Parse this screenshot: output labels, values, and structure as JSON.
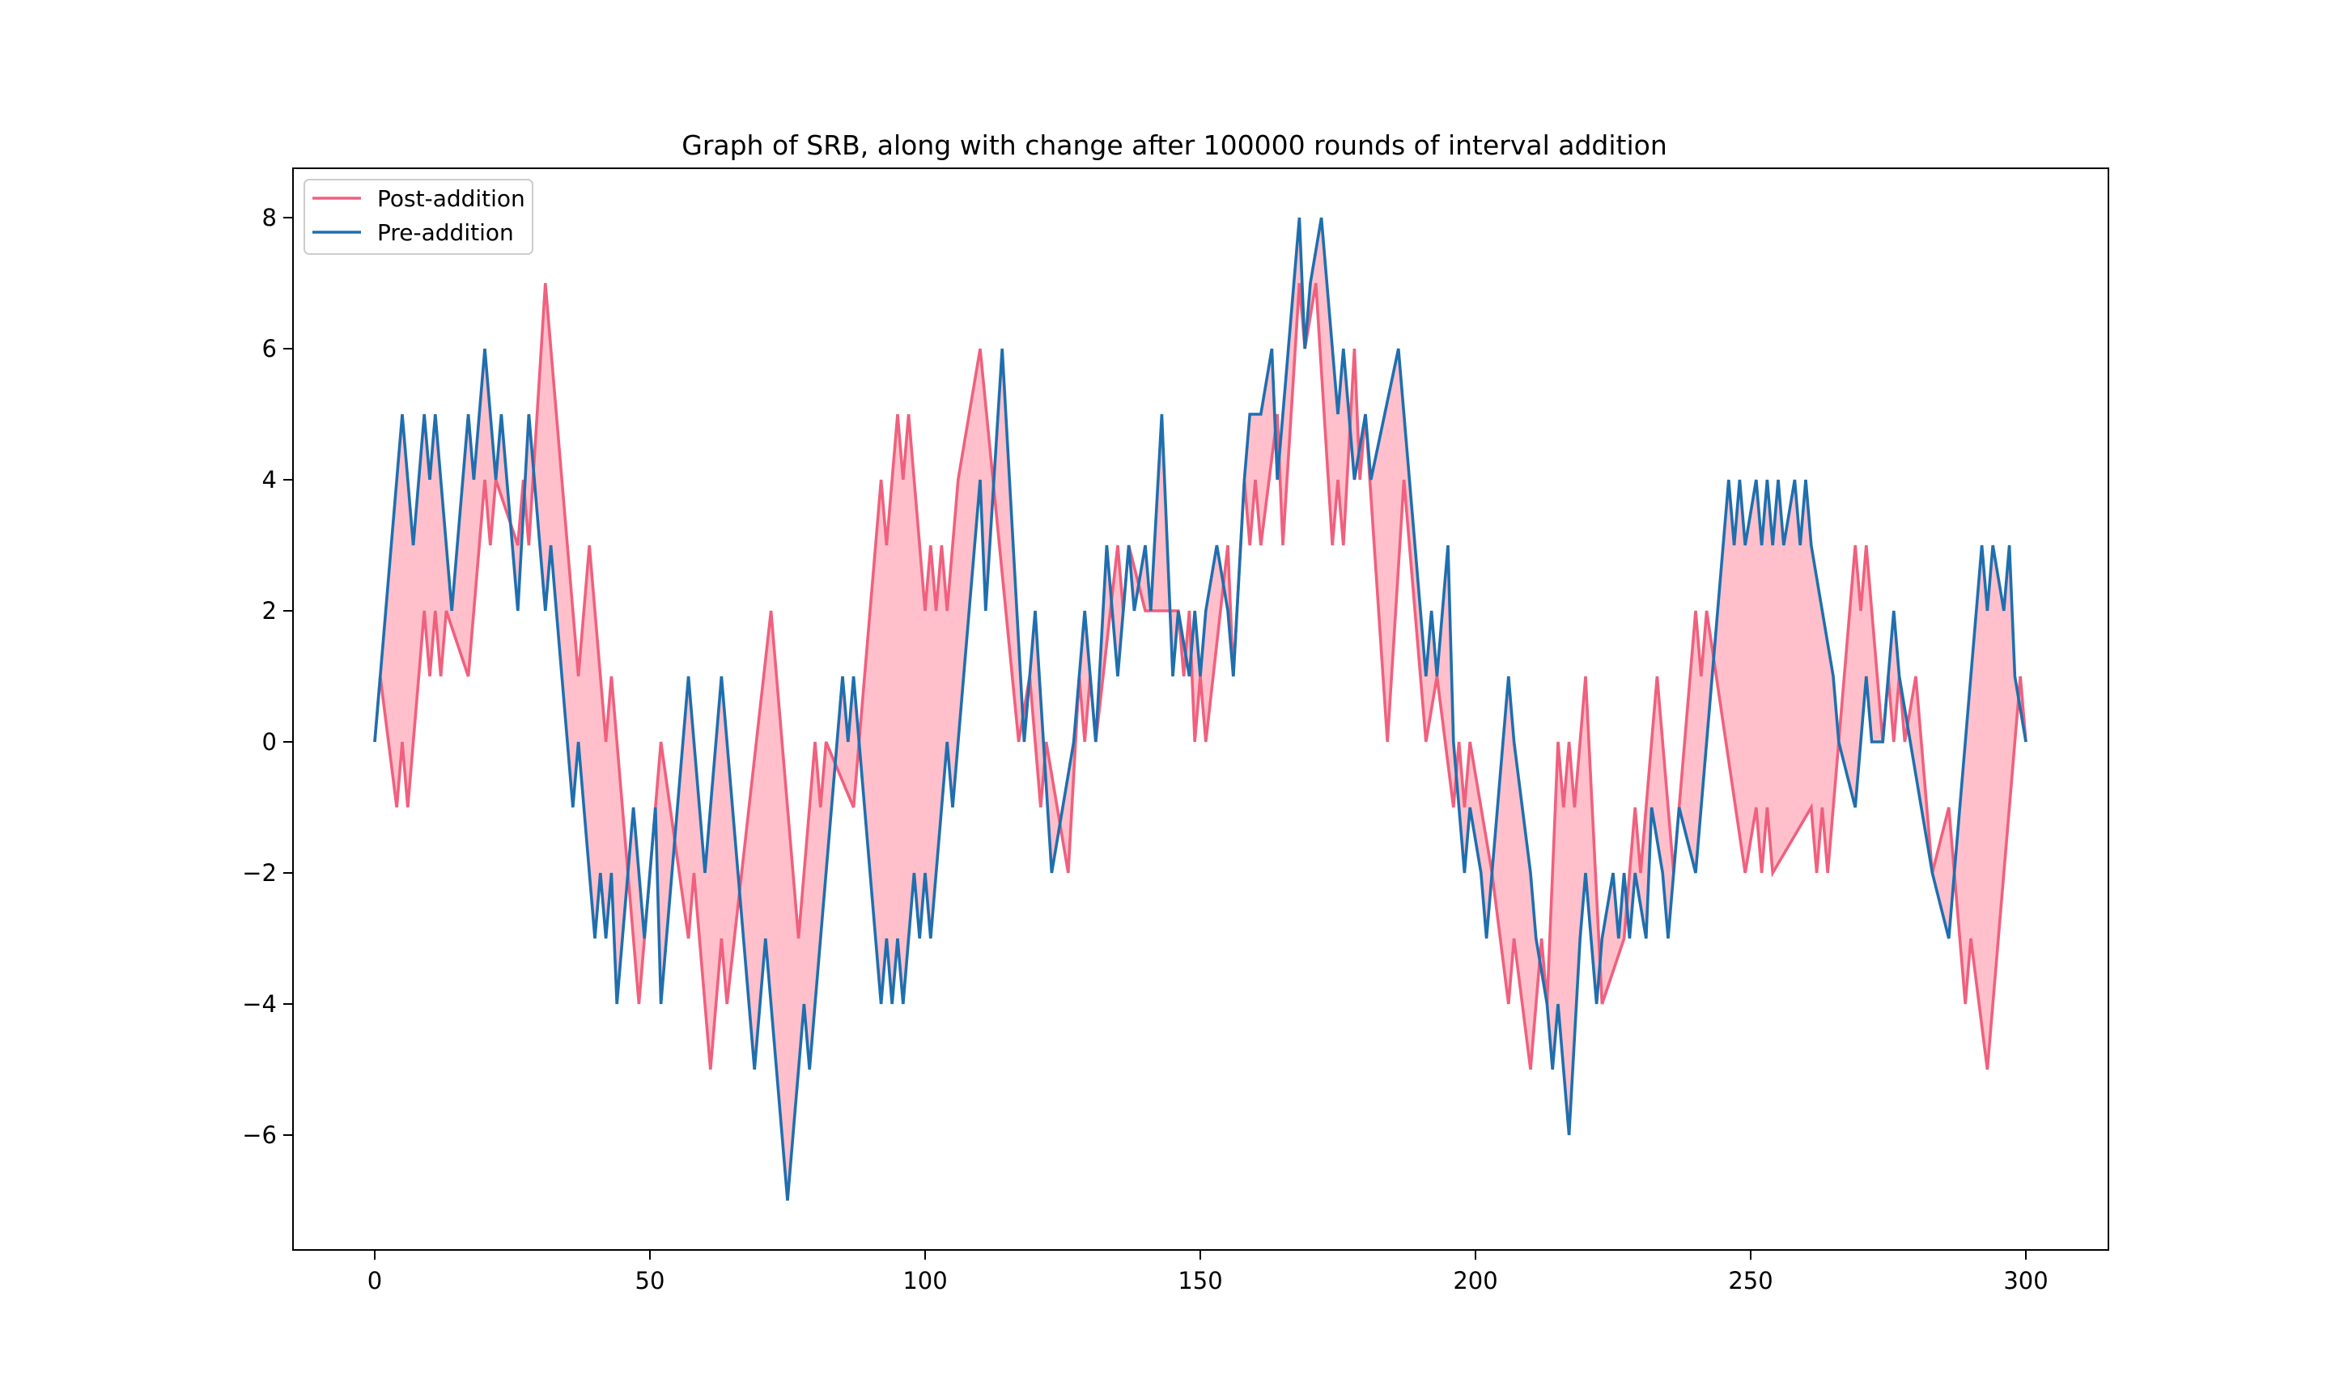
{
  "chart_data": {
    "type": "line",
    "title": "Graph of SRB, along with change after 100000 rounds of interval addition",
    "xlabel": "",
    "ylabel": "",
    "xlim": [
      -15,
      315
    ],
    "ylim": [
      -7.8,
      8.7
    ],
    "xticks": [
      0,
      50,
      100,
      150,
      200,
      250,
      300
    ],
    "yticks": [
      -6,
      -4,
      -2,
      0,
      2,
      4,
      6,
      8
    ],
    "xtick_labels": [
      "0",
      "50",
      "100",
      "150",
      "200",
      "250",
      "300"
    ],
    "ytick_labels": [
      "−6",
      "−4",
      "−2",
      "0",
      "2",
      "4",
      "6",
      "8"
    ],
    "grid": false,
    "legend_position": "upper-left",
    "fill_between": {
      "color": "#ffc0cb",
      "between": [
        "Post-addition",
        "Pre-addition"
      ]
    },
    "series": [
      {
        "name": "Post-addition",
        "color": "#f0607e",
        "points": [
          [
            0,
            0
          ],
          [
            1,
            1
          ],
          [
            4,
            -1
          ],
          [
            5,
            0
          ],
          [
            6,
            -1
          ],
          [
            9,
            2
          ],
          [
            10,
            1
          ],
          [
            11,
            2
          ],
          [
            12,
            1
          ],
          [
            13,
            2
          ],
          [
            17,
            1
          ],
          [
            20,
            4
          ],
          [
            21,
            3
          ],
          [
            22,
            4
          ],
          [
            26,
            3
          ],
          [
            27,
            4
          ],
          [
            28,
            3
          ],
          [
            31,
            7
          ],
          [
            37,
            1
          ],
          [
            39,
            3
          ],
          [
            42,
            0
          ],
          [
            43,
            1
          ],
          [
            48,
            -4
          ],
          [
            52,
            0
          ],
          [
            57,
            -3
          ],
          [
            58,
            -2
          ],
          [
            61,
            -5
          ],
          [
            63,
            -3
          ],
          [
            64,
            -4
          ],
          [
            72,
            2
          ],
          [
            77,
            -3
          ],
          [
            80,
            0
          ],
          [
            81,
            -1
          ],
          [
            82,
            0
          ],
          [
            87,
            -1
          ],
          [
            92,
            4
          ],
          [
            93,
            3
          ],
          [
            95,
            5
          ],
          [
            96,
            4
          ],
          [
            97,
            5
          ],
          [
            100,
            2
          ],
          [
            101,
            3
          ],
          [
            102,
            2
          ],
          [
            103,
            3
          ],
          [
            104,
            2
          ],
          [
            106,
            4
          ],
          [
            110,
            6
          ],
          [
            117,
            0
          ],
          [
            119,
            1
          ],
          [
            121,
            -1
          ],
          [
            122,
            0
          ],
          [
            126,
            -2
          ],
          [
            128,
            1
          ],
          [
            129,
            0
          ],
          [
            130,
            1
          ],
          [
            131,
            0
          ],
          [
            135,
            3
          ],
          [
            136,
            2
          ],
          [
            137,
            3
          ],
          [
            140,
            2
          ],
          [
            146,
            2
          ],
          [
            147,
            1
          ],
          [
            148,
            2
          ],
          [
            149,
            0
          ],
          [
            150,
            1
          ],
          [
            151,
            0
          ],
          [
            155,
            3
          ],
          [
            156,
            1
          ],
          [
            158,
            4
          ],
          [
            159,
            3
          ],
          [
            160,
            4
          ],
          [
            161,
            3
          ],
          [
            164,
            5
          ],
          [
            165,
            3
          ],
          [
            168,
            7
          ],
          [
            169,
            6
          ],
          [
            171,
            7
          ],
          [
            174,
            3
          ],
          [
            175,
            4
          ],
          [
            176,
            3
          ],
          [
            178,
            6
          ],
          [
            179,
            4
          ],
          [
            180,
            5
          ],
          [
            184,
            0
          ],
          [
            187,
            4
          ],
          [
            188,
            3
          ],
          [
            191,
            0
          ],
          [
            193,
            1
          ],
          [
            196,
            -1
          ],
          [
            197,
            0
          ],
          [
            198,
            -1
          ],
          [
            199,
            0
          ],
          [
            203,
            -2
          ],
          [
            206,
            -4
          ],
          [
            207,
            -3
          ],
          [
            210,
            -5
          ],
          [
            212,
            -3
          ],
          [
            213,
            -4
          ],
          [
            215,
            0
          ],
          [
            216,
            -1
          ],
          [
            217,
            0
          ],
          [
            218,
            -1
          ],
          [
            220,
            1
          ],
          [
            223,
            -4
          ],
          [
            227,
            -3
          ],
          [
            229,
            -1
          ],
          [
            230,
            -2
          ],
          [
            233,
            1
          ],
          [
            236,
            -2
          ],
          [
            240,
            2
          ],
          [
            241,
            1
          ],
          [
            242,
            2
          ],
          [
            249,
            -2
          ],
          [
            251,
            -1
          ],
          [
            252,
            -2
          ],
          [
            253,
            -1
          ],
          [
            254,
            -2
          ],
          [
            261,
            -1
          ],
          [
            262,
            -2
          ],
          [
            263,
            -1
          ],
          [
            264,
            -2
          ],
          [
            269,
            3
          ],
          [
            270,
            2
          ],
          [
            271,
            3
          ],
          [
            274,
            0
          ],
          [
            275,
            1
          ],
          [
            276,
            0
          ],
          [
            277,
            1
          ],
          [
            278,
            0
          ],
          [
            280,
            1
          ],
          [
            283,
            -2
          ],
          [
            286,
            -1
          ],
          [
            289,
            -4
          ],
          [
            290,
            -3
          ],
          [
            293,
            -5
          ],
          [
            298,
            0
          ],
          [
            299,
            1
          ],
          [
            300,
            0
          ]
        ]
      },
      {
        "name": "Pre-addition",
        "color": "#1f6fae",
        "points": [
          [
            0,
            0
          ],
          [
            5,
            5
          ],
          [
            7,
            3
          ],
          [
            9,
            5
          ],
          [
            10,
            4
          ],
          [
            11,
            5
          ],
          [
            14,
            2
          ],
          [
            17,
            5
          ],
          [
            18,
            4
          ],
          [
            20,
            6
          ],
          [
            22,
            4
          ],
          [
            23,
            5
          ],
          [
            26,
            2
          ],
          [
            28,
            5
          ],
          [
            31,
            2
          ],
          [
            32,
            3
          ],
          [
            36,
            -1
          ],
          [
            37,
            0
          ],
          [
            40,
            -3
          ],
          [
            41,
            -2
          ],
          [
            42,
            -3
          ],
          [
            43,
            -2
          ],
          [
            44,
            -4
          ],
          [
            47,
            -1
          ],
          [
            49,
            -3
          ],
          [
            51,
            -1
          ],
          [
            52,
            -4
          ],
          [
            57,
            1
          ],
          [
            60,
            -2
          ],
          [
            63,
            1
          ],
          [
            69,
            -5
          ],
          [
            71,
            -3
          ],
          [
            75,
            -7
          ],
          [
            78,
            -4
          ],
          [
            79,
            -5
          ],
          [
            85,
            1
          ],
          [
            86,
            0
          ],
          [
            87,
            1
          ],
          [
            92,
            -4
          ],
          [
            93,
            -3
          ],
          [
            94,
            -4
          ],
          [
            95,
            -3
          ],
          [
            96,
            -4
          ],
          [
            98,
            -2
          ],
          [
            99,
            -3
          ],
          [
            100,
            -2
          ],
          [
            101,
            -3
          ],
          [
            104,
            0
          ],
          [
            105,
            -1
          ],
          [
            110,
            4
          ],
          [
            111,
            2
          ],
          [
            114,
            6
          ],
          [
            118,
            0
          ],
          [
            119,
            1
          ],
          [
            120,
            2
          ],
          [
            123,
            -2
          ],
          [
            127,
            0
          ],
          [
            129,
            2
          ],
          [
            131,
            0
          ],
          [
            133,
            3
          ],
          [
            134,
            2
          ],
          [
            135,
            1
          ],
          [
            137,
            3
          ],
          [
            138,
            2
          ],
          [
            140,
            3
          ],
          [
            141,
            2
          ],
          [
            143,
            5
          ],
          [
            145,
            1
          ],
          [
            146,
            2
          ],
          [
            148,
            1
          ],
          [
            149,
            2
          ],
          [
            150,
            1
          ],
          [
            151,
            2
          ],
          [
            153,
            3
          ],
          [
            155,
            2
          ],
          [
            156,
            1
          ],
          [
            158,
            4
          ],
          [
            159,
            5
          ],
          [
            161,
            5
          ],
          [
            163,
            6
          ],
          [
            164,
            4
          ],
          [
            166,
            6
          ],
          [
            168,
            8
          ],
          [
            169,
            6
          ],
          [
            170,
            7
          ],
          [
            172,
            8
          ],
          [
            175,
            5
          ],
          [
            176,
            6
          ],
          [
            177,
            5
          ],
          [
            178,
            4
          ],
          [
            180,
            5
          ],
          [
            181,
            4
          ],
          [
            186,
            6
          ],
          [
            189,
            3
          ],
          [
            190,
            2
          ],
          [
            191,
            1
          ],
          [
            192,
            2
          ],
          [
            193,
            1
          ],
          [
            195,
            3
          ],
          [
            196,
            0
          ],
          [
            197,
            -1
          ],
          [
            198,
            -2
          ],
          [
            199,
            -1
          ],
          [
            201,
            -2
          ],
          [
            202,
            -3
          ],
          [
            203,
            -2
          ],
          [
            205,
            0
          ],
          [
            206,
            1
          ],
          [
            207,
            0
          ],
          [
            210,
            -2
          ],
          [
            211,
            -3
          ],
          [
            213,
            -4
          ],
          [
            214,
            -5
          ],
          [
            215,
            -4
          ],
          [
            217,
            -6
          ],
          [
            219,
            -3
          ],
          [
            220,
            -2
          ],
          [
            222,
            -4
          ],
          [
            223,
            -3
          ],
          [
            225,
            -2
          ],
          [
            226,
            -3
          ],
          [
            227,
            -2
          ],
          [
            228,
            -3
          ],
          [
            229,
            -2
          ],
          [
            231,
            -3
          ],
          [
            232,
            -1
          ],
          [
            234,
            -2
          ],
          [
            235,
            -3
          ],
          [
            236,
            -2
          ],
          [
            237,
            -1
          ],
          [
            240,
            -2
          ],
          [
            241,
            -1
          ],
          [
            246,
            4
          ],
          [
            247,
            3
          ],
          [
            248,
            4
          ],
          [
            249,
            3
          ],
          [
            251,
            4
          ],
          [
            252,
            3
          ],
          [
            253,
            4
          ],
          [
            254,
            3
          ],
          [
            255,
            4
          ],
          [
            256,
            3
          ],
          [
            258,
            4
          ],
          [
            259,
            3
          ],
          [
            260,
            4
          ],
          [
            261,
            3
          ],
          [
            263,
            2
          ],
          [
            265,
            1
          ],
          [
            266,
            0
          ],
          [
            269,
            -1
          ],
          [
            270,
            0
          ],
          [
            271,
            1
          ],
          [
            272,
            0
          ],
          [
            274,
            0
          ],
          [
            275,
            1
          ],
          [
            276,
            2
          ],
          [
            277,
            1
          ],
          [
            281,
            -1
          ],
          [
            283,
            -2
          ],
          [
            286,
            -3
          ],
          [
            287,
            -2
          ],
          [
            288,
            -1
          ],
          [
            292,
            3
          ],
          [
            293,
            2
          ],
          [
            294,
            3
          ],
          [
            296,
            2
          ],
          [
            297,
            3
          ],
          [
            298,
            1
          ],
          [
            300,
            0
          ]
        ]
      }
    ]
  }
}
